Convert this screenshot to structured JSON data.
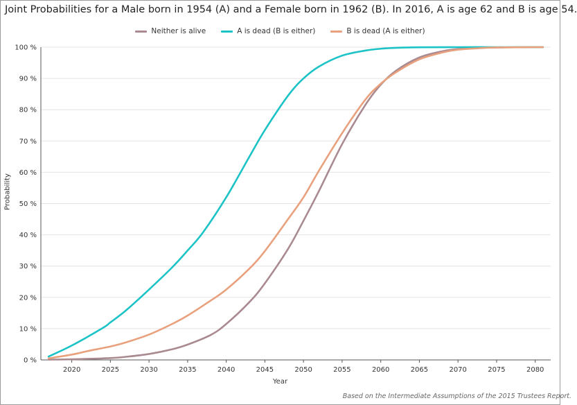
{
  "title": "Joint Probabilities for a Male born in 1954 (A) and a Female born in 1962 (B). In 2016, A is age 62 and B is age 54.",
  "footer": "Based on the Intermediate Assumptions of the 2015 Trustees Report.",
  "chart_data": {
    "type": "line",
    "xlabel": "Year",
    "ylabel": "Probability",
    "xlim": [
      2016,
      2082
    ],
    "ylim": [
      0,
      100
    ],
    "x_ticks": [
      2020,
      2025,
      2030,
      2035,
      2040,
      2045,
      2050,
      2055,
      2060,
      2065,
      2070,
      2075,
      2080
    ],
    "y_ticks": [
      {
        "value": 0,
        "label": "0 %"
      },
      {
        "value": 10,
        "label": "10 %"
      },
      {
        "value": 20,
        "label": "20 %"
      },
      {
        "value": 30,
        "label": "30 %"
      },
      {
        "value": 40,
        "label": "40 %"
      },
      {
        "value": 50,
        "label": "50 %"
      },
      {
        "value": 60,
        "label": "60 %"
      },
      {
        "value": 70,
        "label": "70 %"
      },
      {
        "value": 80,
        "label": "80 %"
      },
      {
        "value": 90,
        "label": "90 %"
      },
      {
        "value": 100,
        "label": "100 %"
      }
    ],
    "grid": "horizontal",
    "legend_position": "top-center",
    "series": [
      {
        "name": "Neither is alive",
        "color": "#a98a90",
        "x": [
          2017,
          2020,
          2025,
          2027,
          2030,
          2033,
          2035,
          2038,
          2040,
          2043,
          2045,
          2048,
          2050,
          2052,
          2055,
          2058,
          2060,
          2062,
          2065,
          2068,
          2070,
          2073,
          2075,
          2080,
          2081
        ],
        "y": [
          0.1,
          0.2,
          0.6,
          1.0,
          1.9,
          3.4,
          4.9,
          8.0,
          11.5,
          18.5,
          24.5,
          35.5,
          44.5,
          54.0,
          69.0,
          81.5,
          88.0,
          92.5,
          96.7,
          98.7,
          99.4,
          99.8,
          99.9,
          100,
          100
        ]
      },
      {
        "name": "A is dead (B is either)",
        "color": "#1cc3c6",
        "x": [
          2017,
          2020,
          2024,
          2025,
          2027,
          2030,
          2033,
          2035,
          2037,
          2040,
          2043,
          2045,
          2048,
          2050,
          2052,
          2055,
          2058,
          2060,
          2062,
          2065,
          2070,
          2075,
          2080,
          2081
        ],
        "y": [
          1.1,
          4.6,
          10.2,
          12.0,
          15.8,
          22.5,
          29.6,
          35.0,
          40.8,
          52.0,
          65.0,
          73.5,
          84.5,
          90.0,
          93.8,
          97.3,
          98.9,
          99.5,
          99.8,
          99.95,
          100,
          100,
          100,
          100
        ]
      },
      {
        "name": "B is dead (A is either)",
        "color": "#e9a07c",
        "x": [
          2017,
          2020,
          2022,
          2025,
          2027,
          2030,
          2033,
          2035,
          2038,
          2040,
          2043,
          2045,
          2048,
          2050,
          2052,
          2055,
          2058,
          2060,
          2062,
          2065,
          2068,
          2070,
          2073,
          2075,
          2080,
          2081
        ],
        "y": [
          0.5,
          1.7,
          2.8,
          4.3,
          5.6,
          8.1,
          11.5,
          14.2,
          19.0,
          22.5,
          29.2,
          34.8,
          45.0,
          52.0,
          60.5,
          72.5,
          83.2,
          88.3,
          92.0,
          96.1,
          98.3,
          99.2,
          99.7,
          99.9,
          100,
          100
        ]
      }
    ]
  }
}
